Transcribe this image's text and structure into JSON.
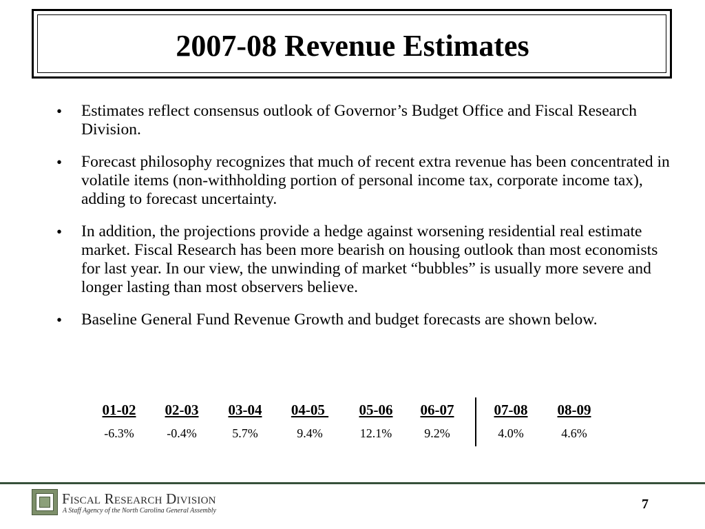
{
  "slide": {
    "title": "2007-08 Revenue Estimates",
    "page_number": "7"
  },
  "bullets": [
    {
      "text": "Estimates reflect consensus outlook of Governor’s Budget Office and Fiscal Research Division."
    },
    {
      "text": "Forecast philosophy recognizes that much of recent extra revenue has been concentrated in volatile items (non-withholding portion of personal income tax, corporate income tax), adding to forecast uncertainty."
    },
    {
      "text": "In addition, the projections provide a hedge against worsening residential real estimate market.  Fiscal Research has been more bearish on housing outlook than most economists for last year. In our view, the unwinding of market  “bubbles” is usually more severe and longer lasting than most observers believe."
    },
    {
      "text": "Baseline General Fund Revenue Growth and budget forecasts are shown below."
    }
  ],
  "growth": {
    "columns": [
      {
        "year": "01-02",
        "value": "-6.3%"
      },
      {
        "year": "02-03",
        "value": "-0.4%"
      },
      {
        "year": "03-04",
        "value": "5.7%"
      },
      {
        "year": "04-05 ",
        "value": "9.4%"
      },
      {
        "year": "05-06",
        "value": "12.1%"
      },
      {
        "year": "06-07",
        "value": "9.2%"
      },
      {
        "year": "07-08",
        "value": "4.0%"
      },
      {
        "year": "08-09",
        "value": "4.6%"
      }
    ]
  },
  "footer": {
    "org_name": "Fiscal Research Division",
    "org_subtitle": "A Staff Agency of the North Carolina General Assembly"
  }
}
